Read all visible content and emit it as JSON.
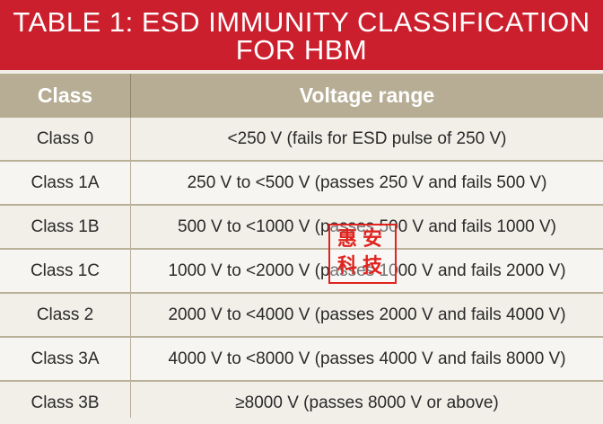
{
  "title": {
    "line1": "TABLE 1: ESD IMMUNITY CLASSIFICATION",
    "line2": "FOR HBM"
  },
  "table": {
    "headers": [
      "Class",
      "Voltage range"
    ],
    "rows": [
      {
        "class": "Class 0",
        "range": "<250 V (fails for ESD pulse of 250 V)"
      },
      {
        "class": "Class 1A",
        "range": "250 V to <500 V (passes 250 V and fails 500 V)"
      },
      {
        "class": "Class 1B",
        "range": "500 V to <1000 V (passes 500 V and fails 1000 V)"
      },
      {
        "class": "Class 1C",
        "range": "1000 V to <2000 V (passes 1000 V and fails 2000 V)"
      },
      {
        "class": "Class 2",
        "range": "2000 V to <4000 V (passes 2000 V and fails 4000 V)"
      },
      {
        "class": "Class 3A",
        "range": "4000 V to <8000 V (passes 4000 V and fails 8000 V)"
      },
      {
        "class": "Class 3B",
        "range": "≥8000 V (passes 8000 V or above)"
      }
    ]
  },
  "stamp": {
    "line1": "惠安",
    "line2": "科技"
  },
  "colors": {
    "title_bg": "#cc1f2d",
    "header_bg": "#b6ad94",
    "stamp": "#e0231f"
  }
}
